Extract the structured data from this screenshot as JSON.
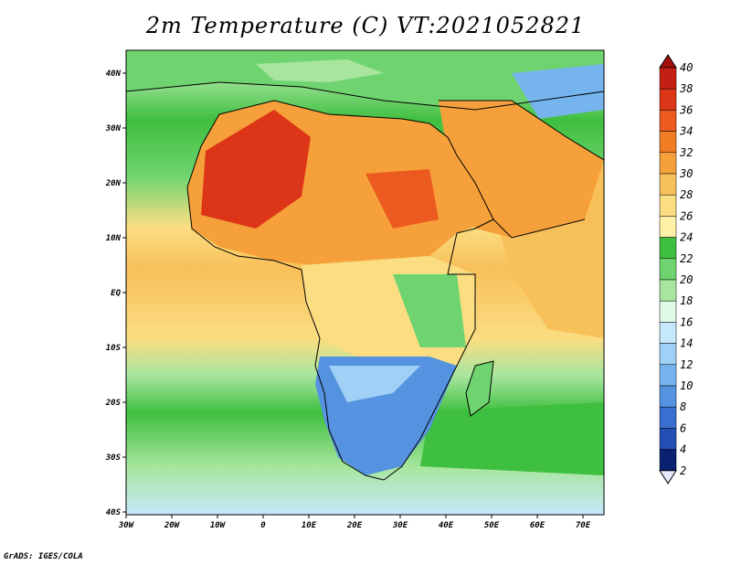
{
  "title": "2m Temperature (C) VT:2021052821",
  "credit": "GrADS: IGES/COLA",
  "lat_labels": [
    "40N",
    "30N",
    "20N",
    "10N",
    "EQ",
    "10S",
    "20S",
    "30S",
    "40S"
  ],
  "lon_labels": [
    "30W",
    "20W",
    "10W",
    "0",
    "10E",
    "20E",
    "30E",
    "40E",
    "50E",
    "60E",
    "70E"
  ],
  "colorbar": {
    "levels": [
      "40",
      "38",
      "36",
      "34",
      "32",
      "30",
      "28",
      "26",
      "24",
      "22",
      "20",
      "18",
      "16",
      "14",
      "12",
      "10",
      "8",
      "6",
      "4",
      "2"
    ],
    "colors": [
      "#a50d0d",
      "#c41f14",
      "#dd3518",
      "#ec5a1f",
      "#f37d24",
      "#f5a03a",
      "#f8c059",
      "#fbdd82",
      "#fff0a8",
      "#3fbf3f",
      "#6fd46f",
      "#a8e6a0",
      "#e0fae8",
      "#c5e8fa",
      "#a0d0f5",
      "#76b4ee",
      "#5592e0",
      "#3a6fd0",
      "#2450b4",
      "#0a2070",
      "#1a1a60"
    ]
  },
  "map": {
    "region": "Africa",
    "lon_range": [
      -30,
      75
    ],
    "lat_range": [
      -40,
      45
    ],
    "ocean_north_color": "#6fd46f",
    "ocean_tropical_color": "#fbdd82",
    "ocean_south_color": "#3fbf3f"
  }
}
